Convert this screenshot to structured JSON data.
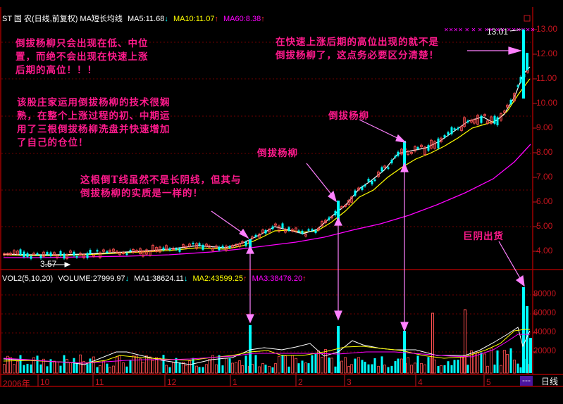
{
  "header": {
    "stock_title": "ST 国 农(日线,前复权) MA短长均线",
    "ma5": "MA5:11.68",
    "ma5_dir": "↓",
    "ma10": "MA10:11.07",
    "ma10_dir": "↑",
    "ma60": "MA60:8.38",
    "ma60_dir": "↑"
  },
  "volume_header": {
    "title": "VOL2(5,10,20)",
    "volume": "VOLUME:27999.97",
    "volume_dir": "↓",
    "ma1": "MA1:38624.11",
    "ma1_dir": "↓",
    "ma2": "MA2:43599.25",
    "ma2_dir": "↑",
    "ma3": "MA3:38476.20",
    "ma3_dir": "↑"
  },
  "annotations": {
    "note1": [
      "倒拔杨柳只会出现在低、中位",
      "置，而绝不会出现在快速上涨",
      "后期的高位！！！"
    ],
    "note2": [
      "该股庄家运用倒拔杨柳的技术很娴",
      "熟，在整个上涨过程的初、中期运",
      "用了三根倒拔杨柳洗盘并快速增加",
      "了自己的仓位！"
    ],
    "note3": [
      "这根倒T线虽然不是长阴线，但其与",
      "倒拔杨柳的实质是一样的！"
    ],
    "note4": [
      "在快速上涨后期的高位出现的就不是",
      "倒拔杨柳了，这点务必要区分清楚！"
    ],
    "label_daobayangliu_1": "倒拔杨柳",
    "label_daobayangliu_2": "倒拔杨柳",
    "label_juyinchuhuo": "巨阴出货",
    "high_price": "13.01",
    "low_price": "3.57"
  },
  "footer": {
    "period_label": "日线",
    "period_button": "---",
    "x_labels": [
      "2006年",
      "10",
      "11",
      "12",
      "1",
      "2",
      "3",
      "4",
      "5"
    ]
  },
  "colors": {
    "up": "#ff5050",
    "down": "#00ffff",
    "ma5": "#ffffff",
    "ma10": "#ffff00",
    "ma60": "#ff00ff",
    "axis": "#c8141e",
    "annotation": "#ff1a8c",
    "arrow": "#ff80ff"
  },
  "chart_data": [
    {
      "type": "candlestick",
      "title": "ST 国农 (日线, 前复权) MA短长均线",
      "y_axis": {
        "ticks": [
          4.0,
          5.0,
          6.0,
          7.0,
          8.0,
          9.0,
          10.0,
          11.0,
          12.0,
          13.0
        ],
        "range": [
          3.3,
          13.3
        ]
      },
      "x_axis": {
        "ticks": [
          "2006年",
          "10",
          "11",
          "12",
          "1",
          "2",
          "3",
          "4",
          "5"
        ]
      },
      "series": [
        {
          "name": "MA5",
          "last": 11.68,
          "color": "#ffffff"
        },
        {
          "name": "MA10",
          "last": 11.07,
          "color": "#ffff00"
        },
        {
          "name": "MA60",
          "last": 8.38,
          "color": "#ff00ff"
        }
      ],
      "key_points": {
        "low": 3.57,
        "high": 13.01
      },
      "price_path_approx": [
        {
          "month": "2006-09",
          "price": 3.8
        },
        {
          "month": "2006-10",
          "price": 3.75
        },
        {
          "month": "2006-11",
          "price": 3.9
        },
        {
          "month": "2006-12",
          "price": 4.1
        },
        {
          "month": "2007-01",
          "price": 4.3
        },
        {
          "month": "2007-02",
          "price": 4.8
        },
        {
          "month": "2007-03",
          "price": 6.0
        },
        {
          "month": "2007-04",
          "price": 7.8
        },
        {
          "month": "2007-05",
          "price": 9.2
        },
        {
          "month": "2007-05-end",
          "price": 11.68
        }
      ],
      "annotations": [
        "倒拔杨柳 (Jan)",
        "倒拔杨柳 (Mar)",
        "倒拔杨柳 (Apr)",
        "13.01 high"
      ]
    },
    {
      "type": "bar",
      "title": "VOL2(5,10,20)",
      "y_axis": {
        "ticks": [
          20000,
          40000,
          60000,
          80000
        ]
      },
      "series": [
        {
          "name": "VOLUME",
          "last": 27999.97
        },
        {
          "name": "MA1",
          "last": 38624.11,
          "color": "#ffffff"
        },
        {
          "name": "MA2",
          "last": 43599.25,
          "color": "#ffff00"
        },
        {
          "name": "MA3",
          "last": 38476.2,
          "color": "#ff00ff"
        }
      ],
      "peak_volume_approx": 87000,
      "annotations": [
        "巨阴出货"
      ]
    }
  ]
}
